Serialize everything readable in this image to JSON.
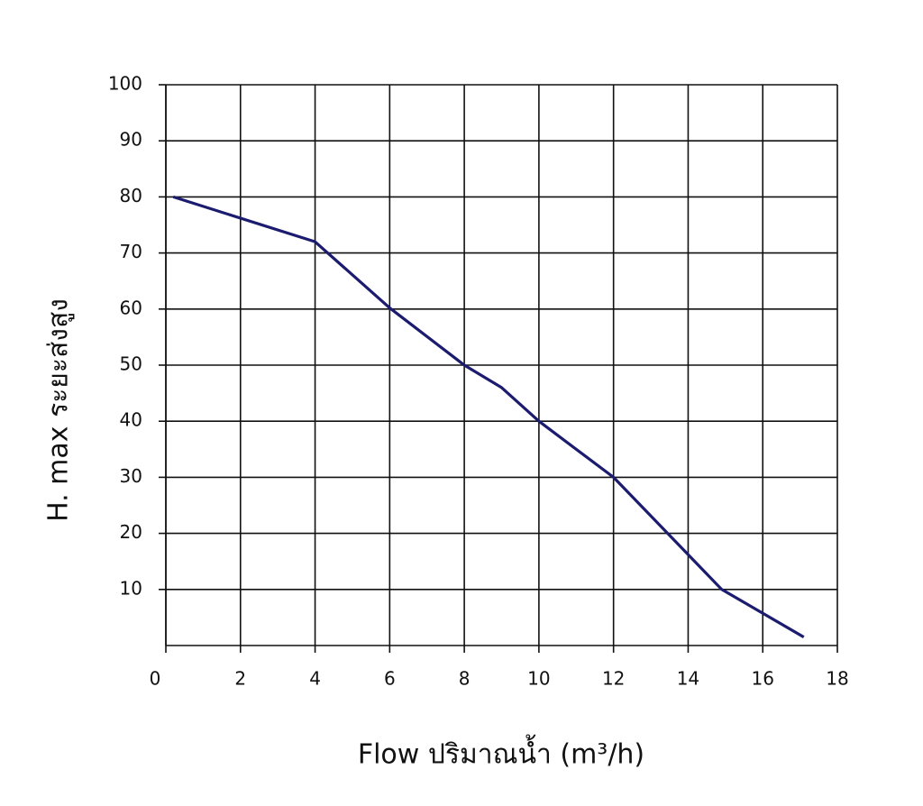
{
  "chart_data": {
    "type": "line",
    "x_label": "Flow  ปริมาณน้ำ (m³/h)",
    "y_label": "H. max  ระยะส่งสูง",
    "x": [
      0.2,
      4,
      6,
      8,
      9,
      10,
      12,
      14.9,
      17.1
    ],
    "values": [
      80,
      72,
      60.2,
      50,
      46,
      40,
      30,
      10,
      1.5
    ],
    "color": "#1b1b6f",
    "xlim": [
      0,
      18
    ],
    "xticks": [
      0,
      2,
      4,
      6,
      8,
      10,
      12,
      14,
      16,
      18
    ],
    "ylim": [
      0,
      100
    ],
    "yticks": [
      10,
      20,
      30,
      40,
      50,
      60,
      70,
      80,
      90,
      100
    ],
    "grid": true
  }
}
